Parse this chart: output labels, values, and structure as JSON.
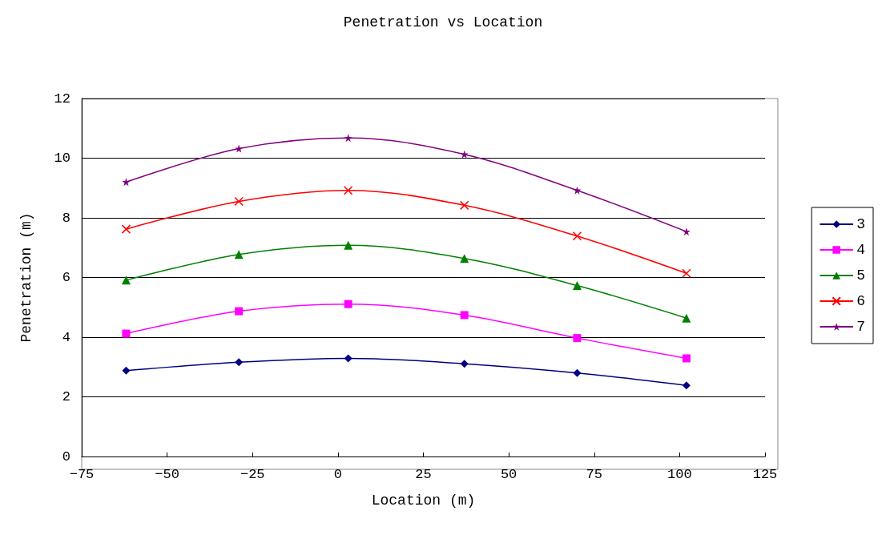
{
  "chart_data": {
    "type": "line",
    "title": "Penetration vs Location",
    "xlabel": "Location (m)",
    "ylabel": "Penetration (m)",
    "x": [
      -62,
      -29,
      3,
      37,
      70,
      102
    ],
    "series": [
      {
        "name": "3",
        "color": "#000080",
        "marker": "diamond",
        "values": [
          2.88,
          3.16,
          3.29,
          3.11,
          2.8,
          2.38
        ]
      },
      {
        "name": "4",
        "color": "#ff00ff",
        "marker": "square",
        "values": [
          4.12,
          4.87,
          5.11,
          4.74,
          3.97,
          3.29
        ]
      },
      {
        "name": "5",
        "color": "#008000",
        "marker": "triangle",
        "values": [
          5.91,
          6.77,
          7.08,
          6.64,
          5.73,
          4.64
        ]
      },
      {
        "name": "6",
        "color": "#ff0000",
        "marker": "cross",
        "values": [
          7.62,
          8.55,
          8.92,
          8.42,
          7.39,
          6.14
        ]
      },
      {
        "name": "7",
        "color": "#800080",
        "marker": "star",
        "values": [
          9.2,
          10.32,
          10.68,
          10.13,
          8.92,
          7.54
        ]
      }
    ],
    "xlim": [
      -75,
      125
    ],
    "xticks": [
      -75,
      -50,
      -25,
      0,
      25,
      50,
      75,
      100,
      125
    ],
    "ylim": [
      0,
      12
    ],
    "yticks": [
      0,
      2,
      4,
      6,
      8,
      10,
      12
    ],
    "grid": "y",
    "legend": "right",
    "line_style": "solid"
  }
}
